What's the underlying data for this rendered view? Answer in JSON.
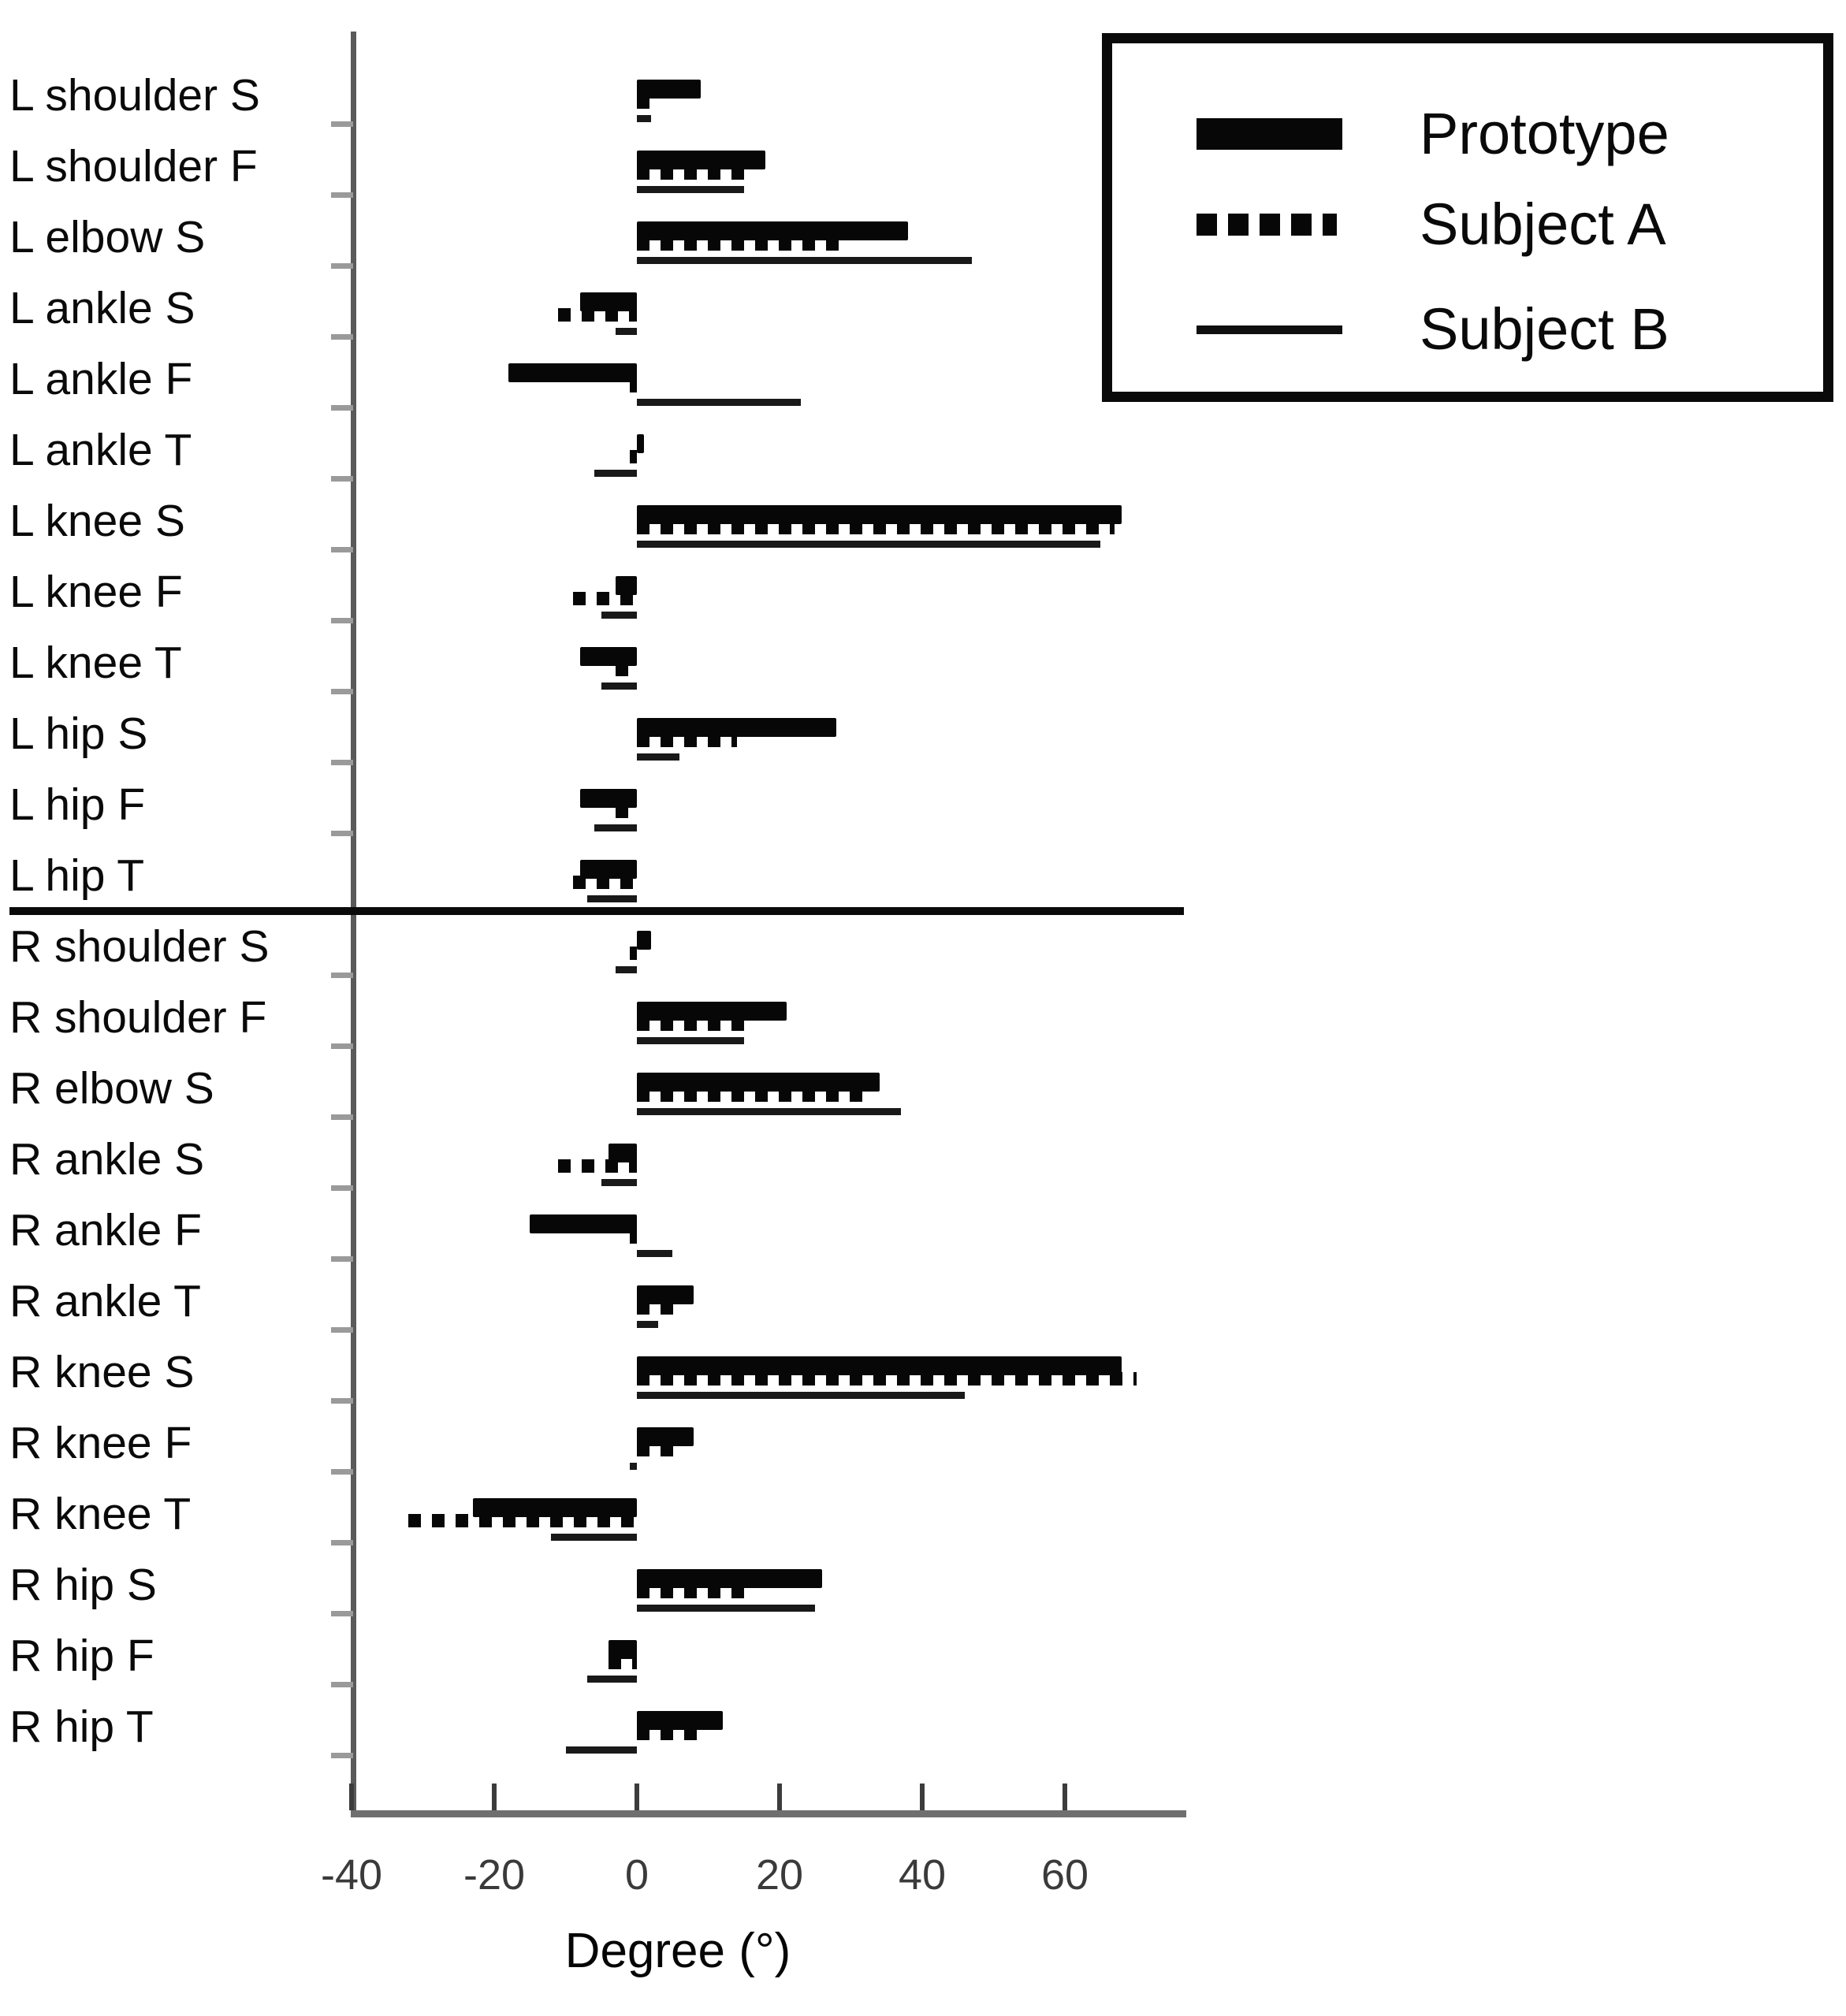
{
  "xlabel": "Degree (°)",
  "legend": {
    "items": [
      {
        "label": "Prototype",
        "style": "thick"
      },
      {
        "label": "Subject A",
        "style": "dotted"
      },
      {
        "label": "Subject B",
        "style": "thin"
      }
    ]
  },
  "chart_data": {
    "type": "bar",
    "orientation": "horizontal",
    "title": "",
    "xlabel": "Degree (°)",
    "ylabel": "",
    "xlim": [
      -40,
      75
    ],
    "x_ticks": [
      -40,
      -20,
      0,
      20,
      40,
      60
    ],
    "grid": false,
    "legend_position": "top-right",
    "unit": "degrees",
    "group_divider_after_index": 11,
    "categories": [
      "L shoulder S",
      "L shoulder F",
      "L elbow S",
      "L ankle S",
      "L ankle F",
      "L ankle T",
      "L knee S",
      "L knee F",
      "L knee T",
      "L hip S",
      "L hip F",
      "L hip T",
      "R shoulder S",
      "R shoulder F",
      "R elbow S",
      "R ankle S",
      "R ankle F",
      "R ankle T",
      "R knee S",
      "R knee F",
      "R knee T",
      "R hip S",
      "R hip F",
      "R hip T"
    ],
    "series": [
      {
        "name": "Prototype",
        "style": "thick",
        "ranges": [
          [
            0,
            9
          ],
          [
            0,
            18
          ],
          [
            0,
            38
          ],
          [
            -8,
            0
          ],
          [
            -18,
            0
          ],
          [
            0,
            1
          ],
          [
            0,
            68
          ],
          [
            -3,
            0
          ],
          [
            -8,
            0
          ],
          [
            0,
            28
          ],
          [
            -8,
            0
          ],
          [
            -8,
            0
          ],
          [
            0,
            2
          ],
          [
            0,
            21
          ],
          [
            0,
            34
          ],
          [
            -4,
            0
          ],
          [
            -15,
            0
          ],
          [
            0,
            8
          ],
          [
            0,
            68
          ],
          [
            0,
            8
          ],
          [
            -23,
            0
          ],
          [
            0,
            26
          ],
          [
            -4,
            0
          ],
          [
            0,
            12
          ]
        ]
      },
      {
        "name": "Subject A",
        "style": "dotted",
        "ranges": [
          [
            0,
            2
          ],
          [
            0,
            16
          ],
          [
            0,
            29
          ],
          [
            -11,
            0
          ],
          [
            -1,
            0
          ],
          [
            -1,
            0
          ],
          [
            0,
            67
          ],
          [
            -9,
            0
          ],
          [
            -3,
            0
          ],
          [
            0,
            14
          ],
          [
            -3,
            0
          ],
          [
            -9,
            0
          ],
          [
            -1,
            0
          ],
          [
            0,
            16
          ],
          [
            0,
            32
          ],
          [
            -11,
            0
          ],
          [
            -1,
            0
          ],
          [
            0,
            6
          ],
          [
            0,
            70
          ],
          [
            0,
            6
          ],
          [
            -32,
            0
          ],
          [
            0,
            15
          ],
          [
            -4,
            0
          ],
          [
            0,
            9
          ]
        ]
      },
      {
        "name": "Subject B",
        "style": "thin",
        "ranges": [
          [
            0,
            2
          ],
          [
            0,
            15
          ],
          [
            0,
            47
          ],
          [
            -3,
            0
          ],
          [
            0,
            23
          ],
          [
            -6,
            0
          ],
          [
            0,
            65
          ],
          [
            -5,
            0
          ],
          [
            -5,
            0
          ],
          [
            0,
            6
          ],
          [
            -6,
            0
          ],
          [
            -7,
            0
          ],
          [
            -3,
            0
          ],
          [
            0,
            15
          ],
          [
            0,
            37
          ],
          [
            -5,
            0
          ],
          [
            0,
            5
          ],
          [
            0,
            3
          ],
          [
            0,
            46
          ],
          [
            -1,
            0
          ],
          [
            -12,
            0
          ],
          [
            0,
            25
          ],
          [
            -7,
            0
          ],
          [
            -10,
            0
          ]
        ]
      }
    ]
  }
}
